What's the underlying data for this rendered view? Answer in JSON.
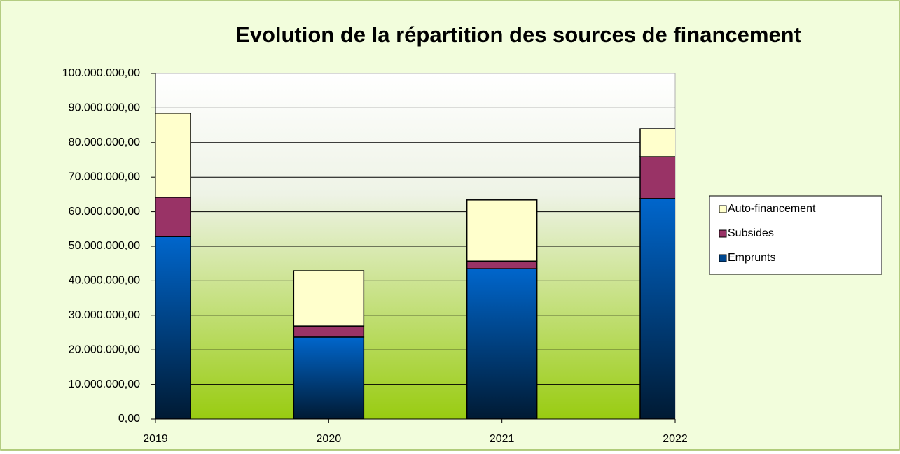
{
  "chart_data": {
    "type": "stacked_bar",
    "title": "Evolution de la répartition des sources de financement",
    "categories": [
      "2019",
      "2020",
      "2021",
      "2022"
    ],
    "series": [
      {
        "name": "Emprunts",
        "color": "#0066cc",
        "values": [
          52800000,
          23700000,
          43500000,
          63800000
        ]
      },
      {
        "name": "Subsides",
        "color": "#993366",
        "values": [
          11400000,
          3200000,
          2200000,
          12100000
        ]
      },
      {
        "name": "Auto-financement",
        "color": "#ffffcc",
        "values": [
          24300000,
          16000000,
          17700000,
          8100000
        ]
      }
    ],
    "ylim": [
      0,
      100000000
    ],
    "yticks": [
      {
        "value": 0,
        "label": "0,00"
      },
      {
        "value": 10000000,
        "label": "10.000.000,00"
      },
      {
        "value": 20000000,
        "label": "20.000.000,00"
      },
      {
        "value": 30000000,
        "label": "30.000.000,00"
      },
      {
        "value": 40000000,
        "label": "40.000.000,00"
      },
      {
        "value": 50000000,
        "label": "50.000.000,00"
      },
      {
        "value": 60000000,
        "label": "60.000.000,00"
      },
      {
        "value": 70000000,
        "label": "70.000.000,00"
      },
      {
        "value": 80000000,
        "label": "80.000.000,00"
      },
      {
        "value": 90000000,
        "label": "90.000.000,00"
      },
      {
        "value": 100000000,
        "label": "100.000.000,00"
      }
    ],
    "grid": true,
    "legend": "right"
  }
}
